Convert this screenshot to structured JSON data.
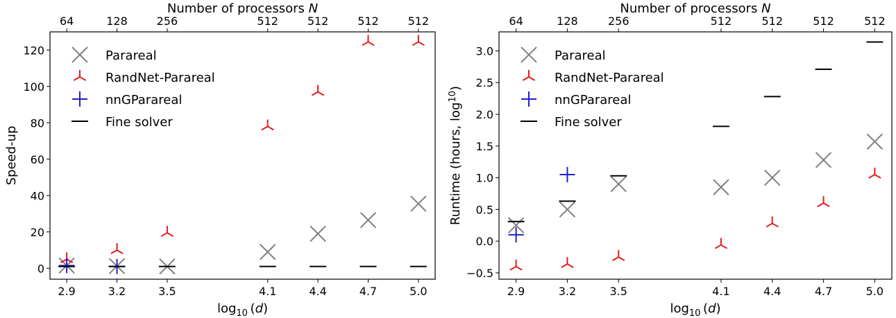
{
  "chart_data": [
    {
      "type": "scatter",
      "ylabel": "Speed-up",
      "xlabel": "log10 (d)",
      "xlabel_base": "log",
      "xlabel_sub": "10",
      "xlabel_var": "d",
      "top_axis_label": "Number of processors N",
      "top_axis_label_text": "Number of processors ",
      "top_axis_label_var": "N",
      "x": [
        2.9,
        3.2,
        3.5,
        4.1,
        4.4,
        4.7,
        5.0
      ],
      "x_tick_labels": [
        "2.9",
        "3.2",
        "3.5",
        "4.1",
        "4.4",
        "4.7",
        "5.0"
      ],
      "top_tick_labels": [
        "64",
        "128",
        "256",
        "512",
        "512",
        "512",
        "512"
      ],
      "yticks": [
        0,
        20,
        40,
        60,
        80,
        100,
        120
      ],
      "y_tick_labels": [
        "0",
        "20",
        "40",
        "60",
        "80",
        "100",
        "120"
      ],
      "ylim": [
        -6,
        130
      ],
      "legend_position": "upper-left",
      "series": [
        {
          "name": "Parareal",
          "marker": "x",
          "color": "#808080",
          "values": [
            1.5,
            1.2,
            1.0,
            9.0,
            19.0,
            26.5,
            35.5
          ]
        },
        {
          "name": "RandNet-Parareal",
          "marker": "tri_down",
          "color": "#e31a1c",
          "values": [
            5.0,
            10.0,
            19.5,
            78.0,
            97.0,
            124.5,
            124.5
          ]
        },
        {
          "name": "nnGParareal",
          "marker": "plus",
          "color": "#1f1fcc",
          "values": [
            1.5,
            1.0,
            null,
            null,
            null,
            null,
            null
          ]
        },
        {
          "name": "Fine solver",
          "marker": "hline",
          "color": "#000000",
          "values": [
            1.0,
            1.0,
            1.0,
            1.0,
            1.0,
            1.0,
            1.0
          ]
        }
      ]
    },
    {
      "type": "scatter",
      "ylabel": "Runtime (hours, log10)",
      "ylabel_text": "Runtime (hours, log",
      "ylabel_sub": "10",
      "ylabel_close": ")",
      "xlabel": "log10 (d)",
      "xlabel_base": "log",
      "xlabel_sub": "10",
      "xlabel_var": "d",
      "top_axis_label": "Number of processors N",
      "top_axis_label_text": "Number of processors ",
      "top_axis_label_var": "N",
      "x": [
        2.9,
        3.2,
        3.5,
        4.1,
        4.4,
        4.7,
        5.0
      ],
      "x_tick_labels": [
        "2.9",
        "3.2",
        "3.5",
        "4.1",
        "4.4",
        "4.7",
        "5.0"
      ],
      "top_tick_labels": [
        "64",
        "128",
        "256",
        "512",
        "512",
        "512",
        "512"
      ],
      "yticks": [
        -0.5,
        0.0,
        0.5,
        1.0,
        1.5,
        2.0,
        2.5,
        3.0
      ],
      "y_tick_labels": [
        "−0.5",
        "0.0",
        "0.5",
        "1.0",
        "1.5",
        "2.0",
        "2.5",
        "3.0"
      ],
      "ylim": [
        -0.6,
        3.3
      ],
      "legend_position": "upper-left",
      "series": [
        {
          "name": "Parareal",
          "marker": "x",
          "color": "#808080",
          "values": [
            0.25,
            0.5,
            0.9,
            0.85,
            1.0,
            1.28,
            1.57
          ]
        },
        {
          "name": "RandNet-Parareal",
          "marker": "tri_down",
          "color": "#e31a1c",
          "values": [
            -0.4,
            -0.36,
            -0.25,
            -0.06,
            0.28,
            0.6,
            1.05
          ]
        },
        {
          "name": "nnGParareal",
          "marker": "plus",
          "color": "#1f1fcc",
          "values": [
            0.1,
            1.05,
            null,
            null,
            null,
            null,
            null
          ]
        },
        {
          "name": "Fine solver",
          "marker": "hline",
          "color": "#000000",
          "values": [
            0.31,
            0.63,
            1.03,
            1.81,
            2.28,
            2.71,
            3.14
          ]
        }
      ]
    }
  ]
}
